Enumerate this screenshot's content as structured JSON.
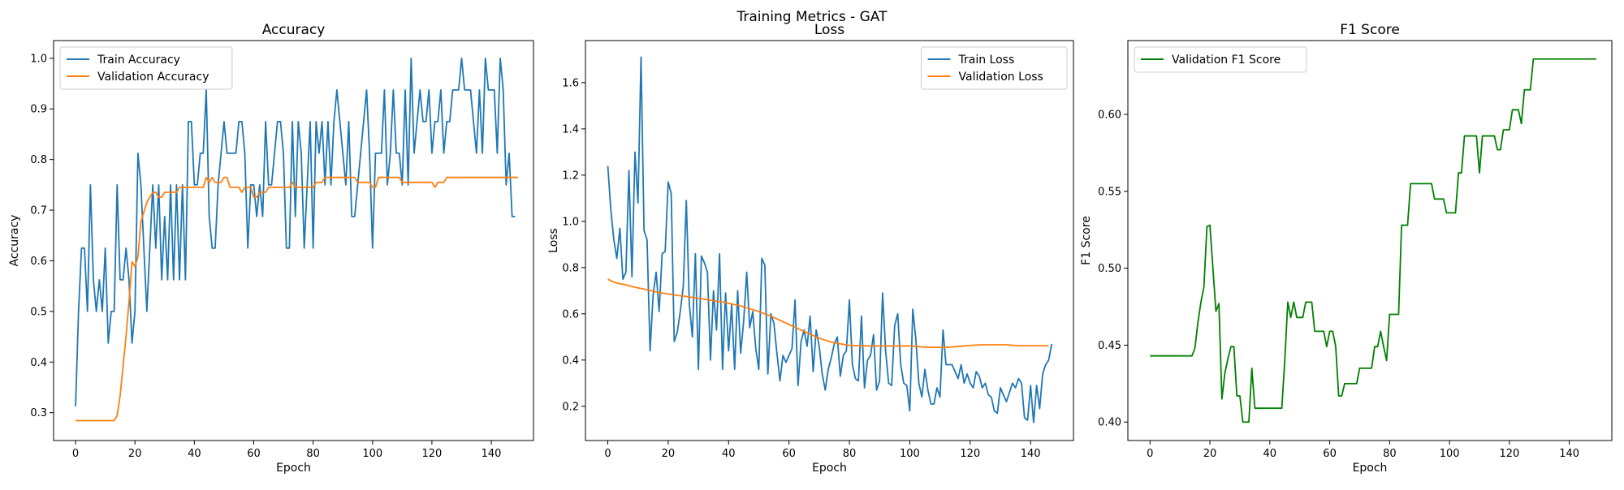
{
  "figure": {
    "title": "Training Metrics - GAT"
  },
  "chart_data": [
    {
      "type": "line",
      "title": "Accuracy",
      "xlabel": "Epoch",
      "ylabel": "Accuracy",
      "xlim": [
        -7.4,
        154.2
      ],
      "ylim": [
        0.245,
        1.035
      ],
      "xticks": [
        0,
        20,
        40,
        60,
        80,
        100,
        120,
        140
      ],
      "yticks": [
        0.3,
        0.4,
        0.5,
        0.6,
        0.7,
        0.8,
        0.9,
        1.0
      ],
      "legend_position": "upper-left",
      "series": [
        {
          "name": "Train Accuracy",
          "color": "#1f77b4",
          "values": [
            0.3125,
            0.5,
            0.625,
            0.625,
            0.5,
            0.75,
            0.5625,
            0.5,
            0.5625,
            0.5,
            0.625,
            0.4375,
            0.5,
            0.5,
            0.75,
            0.5625,
            0.5625,
            0.625,
            0.5625,
            0.4375,
            0.5,
            0.8125,
            0.75,
            0.625,
            0.5,
            0.625,
            0.75,
            0.625,
            0.75,
            0.5625,
            0.6875,
            0.5625,
            0.75,
            0.5625,
            0.75,
            0.5625,
            0.75,
            0.5625,
            0.875,
            0.875,
            0.75,
            0.75,
            0.8125,
            0.8125,
            0.9375,
            0.6875,
            0.625,
            0.625,
            0.75,
            0.8125,
            0.875,
            0.8125,
            0.8125,
            0.8125,
            0.8125,
            0.875,
            0.875,
            0.8125,
            0.625,
            0.75,
            0.75,
            0.6875,
            0.75,
            0.6875,
            0.875,
            0.75,
            0.75,
            0.8125,
            0.875,
            0.875,
            0.8125,
            0.625,
            0.625,
            0.875,
            0.6875,
            0.875,
            0.8125,
            0.625,
            0.75,
            0.875,
            0.625,
            0.875,
            0.8125,
            0.875,
            0.75,
            0.875,
            0.75,
            0.875,
            0.9375,
            0.875,
            0.8125,
            0.75,
            0.875,
            0.6875,
            0.6875,
            0.75,
            0.8125,
            0.875,
            0.9375,
            0.8125,
            0.625,
            0.8125,
            0.8125,
            0.8125,
            0.9375,
            0.75,
            0.8125,
            0.9375,
            0.8125,
            0.8125,
            0.75,
            0.9375,
            0.75,
            1.0,
            0.8125,
            0.875,
            0.9375,
            0.875,
            0.875,
            0.9375,
            0.8125,
            0.875,
            0.875,
            0.9375,
            0.8125,
            0.875,
            0.875,
            0.9375,
            0.9375,
            0.9375,
            1.0,
            0.9375,
            0.9375,
            0.9375,
            0.875,
            0.8125,
            0.9375,
            0.8125,
            1.0,
            0.9375,
            0.9375,
            0.9375,
            0.8125,
            1.0,
            0.9375,
            0.75,
            0.8125,
            0.6875,
            0.6875
          ]
        },
        {
          "name": "Validation Accuracy",
          "color": "#ff7f0e",
          "values": [
            0.2843,
            0.2843,
            0.2843,
            0.2843,
            0.2843,
            0.2843,
            0.2843,
            0.2843,
            0.2843,
            0.2843,
            0.2843,
            0.2843,
            0.2843,
            0.2843,
            0.2941,
            0.3333,
            0.3922,
            0.451,
            0.5196,
            0.598,
            0.5882,
            0.6078,
            0.6765,
            0.6961,
            0.7157,
            0.7255,
            0.7353,
            0.7353,
            0.7255,
            0.7255,
            0.7353,
            0.7353,
            0.7353,
            0.7353,
            0.7353,
            0.7451,
            0.7451,
            0.7451,
            0.7451,
            0.7451,
            0.7451,
            0.7451,
            0.7451,
            0.7451,
            0.7647,
            0.7549,
            0.7647,
            0.7549,
            0.7549,
            0.7549,
            0.7647,
            0.7647,
            0.7451,
            0.7451,
            0.7451,
            0.7451,
            0.7353,
            0.7451,
            0.7451,
            0.7451,
            0.7255,
            0.7255,
            0.7353,
            0.7353,
            0.7353,
            0.7451,
            0.7451,
            0.7451,
            0.7451,
            0.7451,
            0.7451,
            0.7451,
            0.7451,
            0.7549,
            0.7451,
            0.7451,
            0.7451,
            0.7451,
            0.7451,
            0.7451,
            0.7451,
            0.7549,
            0.7549,
            0.7549,
            0.7647,
            0.7647,
            0.7647,
            0.7647,
            0.7647,
            0.7647,
            0.7647,
            0.7647,
            0.7647,
            0.7647,
            0.7647,
            0.7549,
            0.7549,
            0.7549,
            0.7549,
            0.7549,
            0.7451,
            0.7451,
            0.7647,
            0.7647,
            0.7647,
            0.7647,
            0.7647,
            0.7647,
            0.7647,
            0.7647,
            0.7549,
            0.7549,
            0.7549,
            0.7549,
            0.7549,
            0.7549,
            0.7549,
            0.7549,
            0.7549,
            0.7549,
            0.7549,
            0.7451,
            0.7549,
            0.7549,
            0.7549,
            0.7647,
            0.7647,
            0.7647,
            0.7647,
            0.7647,
            0.7647,
            0.7647,
            0.7647,
            0.7647,
            0.7647,
            0.7647,
            0.7647,
            0.7647,
            0.7647,
            0.7647,
            0.7647,
            0.7647,
            0.7647,
            0.7647,
            0.7647,
            0.7647,
            0.7647,
            0.7647,
            0.7647,
            0.7647
          ]
        }
      ]
    },
    {
      "type": "line",
      "title": "Loss",
      "xlabel": "Epoch",
      "ylabel": "Loss",
      "xlim": [
        -7.4,
        154.2
      ],
      "ylim": [
        0.052,
        1.782
      ],
      "xticks": [
        0,
        20,
        40,
        60,
        80,
        100,
        120,
        140
      ],
      "yticks": [
        0.2,
        0.4,
        0.6,
        0.8,
        1.0,
        1.2,
        1.4,
        1.6
      ],
      "legend_position": "upper-right",
      "series": [
        {
          "name": "Train Loss",
          "color": "#1f77b4",
          "values": [
            1.24,
            1.05,
            0.92,
            0.84,
            0.97,
            0.75,
            0.78,
            1.22,
            0.76,
            1.3,
            1.08,
            1.71,
            0.96,
            0.92,
            0.44,
            0.68,
            0.78,
            0.61,
            0.86,
            0.87,
            1.17,
            1.12,
            0.48,
            0.52,
            0.61,
            0.72,
            1.09,
            0.64,
            0.5,
            0.86,
            0.36,
            0.85,
            0.82,
            0.78,
            0.4,
            0.7,
            0.53,
            0.86,
            0.36,
            0.69,
            0.44,
            0.64,
            0.36,
            0.7,
            0.43,
            0.57,
            0.78,
            0.54,
            0.61,
            0.45,
            0.36,
            0.84,
            0.81,
            0.34,
            0.6,
            0.56,
            0.43,
            0.31,
            0.42,
            0.39,
            0.42,
            0.45,
            0.66,
            0.29,
            0.48,
            0.53,
            0.46,
            0.59,
            0.35,
            0.53,
            0.46,
            0.34,
            0.27,
            0.36,
            0.41,
            0.47,
            0.5,
            0.33,
            0.42,
            0.44,
            0.66,
            0.38,
            0.32,
            0.31,
            0.59,
            0.28,
            0.4,
            0.42,
            0.51,
            0.27,
            0.31,
            0.69,
            0.44,
            0.3,
            0.29,
            0.55,
            0.6,
            0.38,
            0.3,
            0.29,
            0.18,
            0.62,
            0.49,
            0.3,
            0.24,
            0.36,
            0.27,
            0.21,
            0.21,
            0.28,
            0.24,
            0.53,
            0.38,
            0.38,
            0.38,
            0.35,
            0.32,
            0.38,
            0.3,
            0.34,
            0.3,
            0.28,
            0.35,
            0.33,
            0.28,
            0.3,
            0.25,
            0.24,
            0.18,
            0.17,
            0.28,
            0.25,
            0.22,
            0.26,
            0.3,
            0.28,
            0.32,
            0.3,
            0.15,
            0.14,
            0.29,
            0.13,
            0.29,
            0.19,
            0.34,
            0.38,
            0.4,
            0.47
          ]
        },
        {
          "name": "Validation Loss",
          "color": "#ff7f0e",
          "values": [
            0.75,
            0.743,
            0.737,
            0.733,
            0.73,
            0.728,
            0.725,
            0.722,
            0.718,
            0.715,
            0.712,
            0.71,
            0.707,
            0.704,
            0.701,
            0.698,
            0.695,
            0.692,
            0.69,
            0.688,
            0.686,
            0.684,
            0.682,
            0.68,
            0.678,
            0.677,
            0.675,
            0.673,
            0.671,
            0.669,
            0.667,
            0.665,
            0.663,
            0.661,
            0.659,
            0.657,
            0.655,
            0.653,
            0.651,
            0.649,
            0.646,
            0.643,
            0.64,
            0.637,
            0.634,
            0.63,
            0.626,
            0.622,
            0.618,
            0.614,
            0.61,
            0.605,
            0.6,
            0.595,
            0.59,
            0.584,
            0.578,
            0.572,
            0.566,
            0.56,
            0.554,
            0.548,
            0.542,
            0.536,
            0.53,
            0.524,
            0.518,
            0.512,
            0.506,
            0.5,
            0.495,
            0.49,
            0.486,
            0.482,
            0.478,
            0.475,
            0.472,
            0.47,
            0.468,
            0.466,
            0.464,
            0.463,
            0.462,
            0.462,
            0.461,
            0.461,
            0.461,
            0.461,
            0.461,
            0.461,
            0.461,
            0.461,
            0.461,
            0.461,
            0.461,
            0.461,
            0.461,
            0.461,
            0.461,
            0.461,
            0.461,
            0.46,
            0.459,
            0.458,
            0.457,
            0.456,
            0.455,
            0.455,
            0.455,
            0.455,
            0.455,
            0.455,
            0.455,
            0.456,
            0.457,
            0.458,
            0.459,
            0.46,
            0.461,
            0.462,
            0.463,
            0.464,
            0.465,
            0.465,
            0.466,
            0.466,
            0.466,
            0.466,
            0.466,
            0.466,
            0.466,
            0.466,
            0.466,
            0.465,
            0.464,
            0.463,
            0.462,
            0.462,
            0.462,
            0.462,
            0.462,
            0.462,
            0.462,
            0.462,
            0.462,
            0.462,
            0.462
          ]
        }
      ]
    },
    {
      "type": "line",
      "title": "F1 Score",
      "xlabel": "Epoch",
      "ylabel": "F1 Score",
      "xlim": [
        -7.4,
        154.2
      ],
      "ylim": [
        0.388,
        0.648
      ],
      "xticks": [
        0,
        20,
        40,
        60,
        80,
        100,
        120,
        140
      ],
      "yticks": [
        0.4,
        0.45,
        0.5,
        0.55,
        0.6
      ],
      "legend_position": "upper-left",
      "series": [
        {
          "name": "Validation F1 Score",
          "color": "#008000",
          "values": [
            0.443,
            0.443,
            0.443,
            0.443,
            0.443,
            0.443,
            0.443,
            0.443,
            0.443,
            0.443,
            0.443,
            0.443,
            0.443,
            0.443,
            0.443,
            0.448,
            0.465,
            0.478,
            0.488,
            0.527,
            0.528,
            0.5,
            0.472,
            0.477,
            0.415,
            0.432,
            0.441,
            0.449,
            0.449,
            0.417,
            0.417,
            0.4,
            0.4,
            0.4,
            0.435,
            0.409,
            0.409,
            0.409,
            0.409,
            0.409,
            0.409,
            0.409,
            0.409,
            0.409,
            0.409,
            0.44,
            0.478,
            0.468,
            0.478,
            0.468,
            0.468,
            0.468,
            0.478,
            0.478,
            0.478,
            0.459,
            0.459,
            0.459,
            0.459,
            0.449,
            0.459,
            0.459,
            0.449,
            0.417,
            0.417,
            0.425,
            0.425,
            0.425,
            0.425,
            0.425,
            0.435,
            0.435,
            0.435,
            0.435,
            0.435,
            0.449,
            0.449,
            0.459,
            0.449,
            0.44,
            0.47,
            0.47,
            0.47,
            0.47,
            0.528,
            0.528,
            0.528,
            0.555,
            0.555,
            0.555,
            0.555,
            0.555,
            0.555,
            0.555,
            0.555,
            0.545,
            0.545,
            0.545,
            0.545,
            0.536,
            0.536,
            0.536,
            0.536,
            0.562,
            0.562,
            0.586,
            0.586,
            0.586,
            0.586,
            0.586,
            0.562,
            0.586,
            0.586,
            0.586,
            0.586,
            0.586,
            0.577,
            0.577,
            0.59,
            0.59,
            0.59,
            0.603,
            0.603,
            0.603,
            0.594,
            0.616,
            0.616,
            0.616,
            0.636,
            0.636,
            0.636,
            0.636,
            0.636,
            0.636,
            0.636,
            0.636,
            0.636,
            0.636,
            0.636,
            0.636,
            0.636,
            0.636,
            0.636,
            0.636,
            0.636,
            0.636,
            0.636,
            0.636,
            0.636,
            0.636
          ]
        }
      ]
    }
  ]
}
